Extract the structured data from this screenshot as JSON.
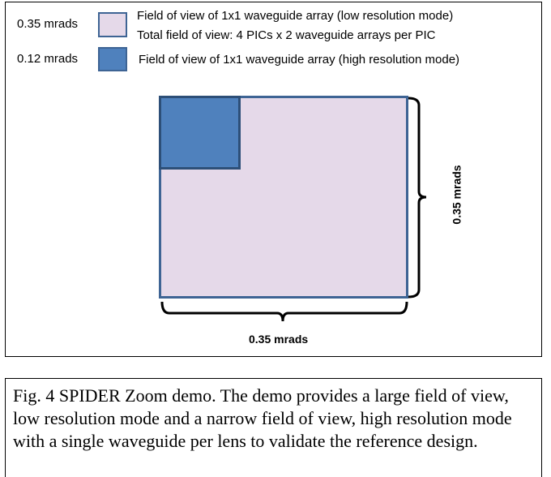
{
  "legend": {
    "low": {
      "value_label": "0.35 mrads",
      "line1": "Field of view of 1x1 waveguide array (low resolution mode)",
      "line2": "Total field of view: 4 PICs x 2 waveguide arrays per PIC",
      "swatch_color": "#e5d9e9"
    },
    "high": {
      "value_label": "0.12 mrads",
      "line1": "Field of view of 1x1 waveguide array (high resolution mode)",
      "swatch_color": "#4f81bd"
    }
  },
  "diagram": {
    "vertical_dim_label": "0.35 mrads",
    "horizontal_dim_label": "0.35 mrads",
    "box_border_color": "#3e6494"
  },
  "caption": {
    "text": "Fig. 4 SPIDER  Zoom demo. The demo provides a large field of view, low resolution mode and a narrow field of view, high resolution mode with a single waveguide per lens to validate the reference design."
  }
}
